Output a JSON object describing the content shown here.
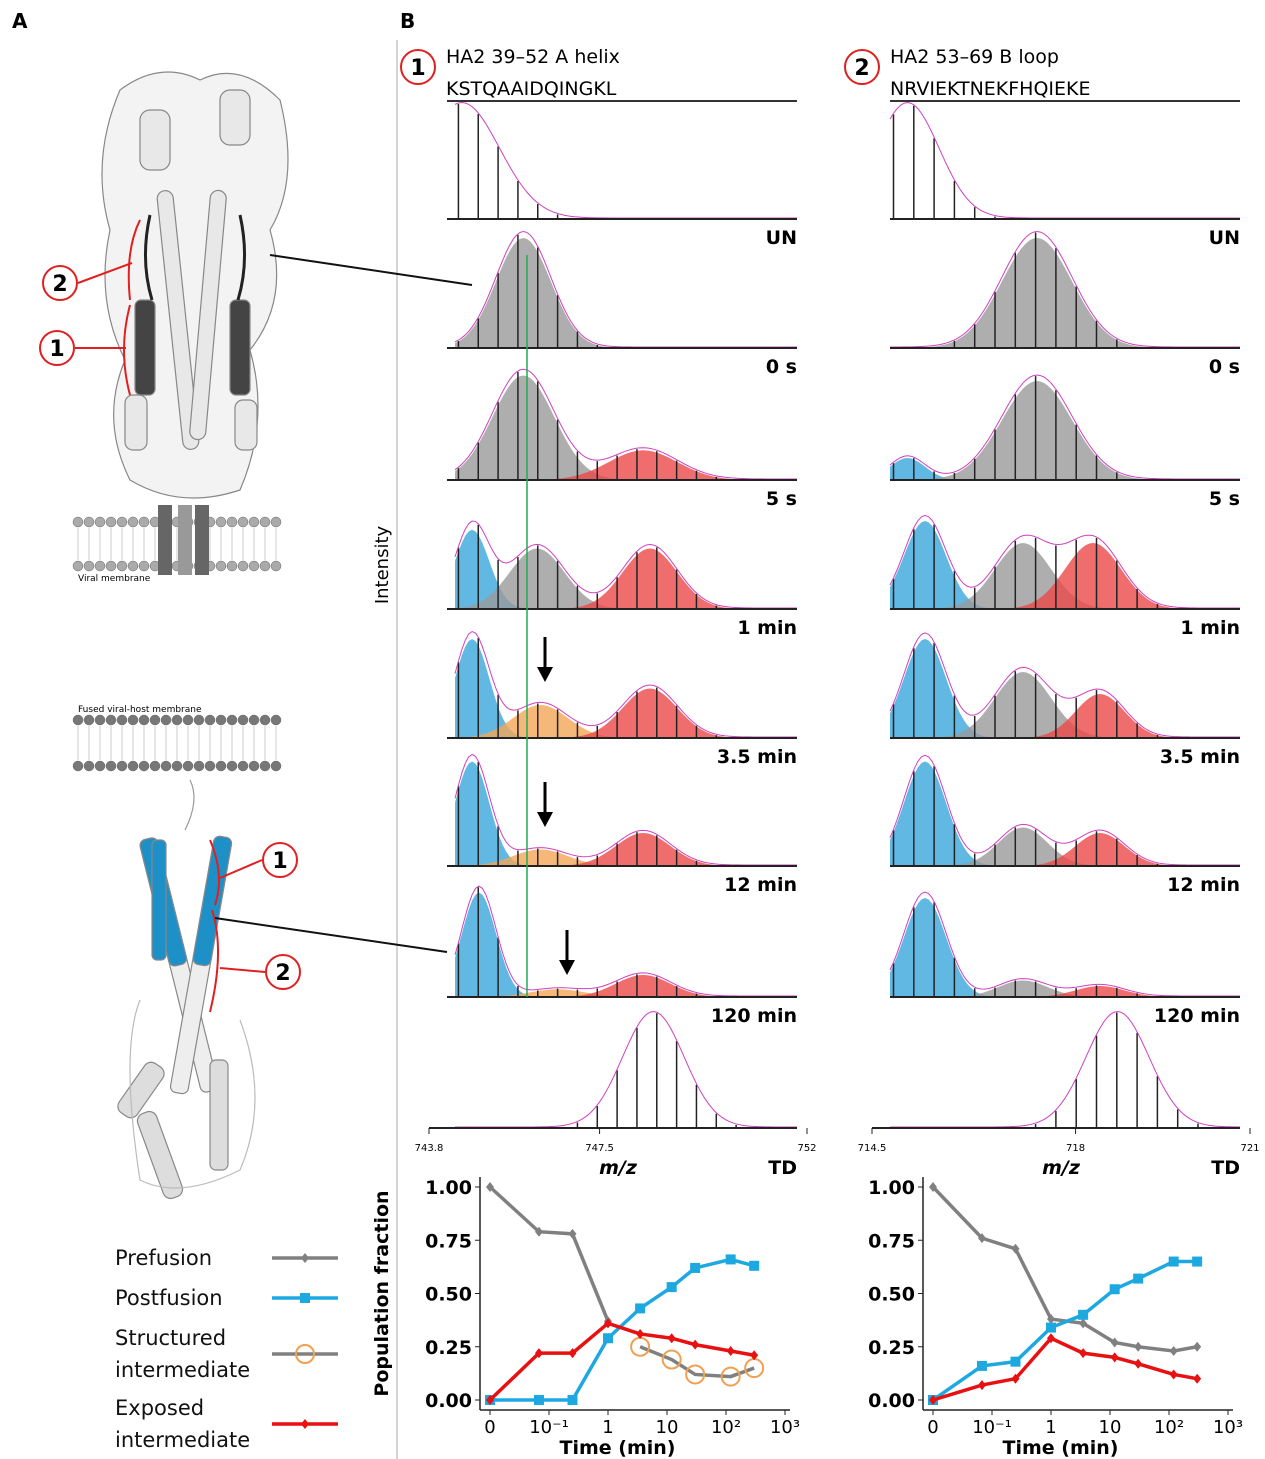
{
  "panel_labels": [
    "A",
    "B"
  ],
  "panel_a": {
    "callouts": [
      "2",
      "1",
      "1",
      "2"
    ],
    "membranes": [
      "Viral membrane",
      "Fused viral-host membrane"
    ]
  },
  "peptides": [
    {
      "number": "1",
      "name": "HA2 39–52 A helix",
      "sequence": "KSTQAAIDQINGKL",
      "xlabel": "m/z",
      "xlim": [
        743.8,
        752
      ],
      "xticks": [
        743.8,
        747.5,
        752
      ]
    },
    {
      "number": "2",
      "name": "HA2 53–69 B loop",
      "sequence": "NRVIEKTNEKFHQIEKE",
      "xlabel": "m/z",
      "xlim": [
        714.5,
        721
      ],
      "xticks": [
        714.5,
        718,
        721
      ]
    }
  ],
  "timepoints": [
    "UN",
    "0 s",
    "5 s",
    "1 min",
    "3.5 min",
    "12 min",
    "120 min",
    "TD"
  ],
  "y_label": "Intensity",
  "chart_data": [
    {
      "type": "line",
      "ylabel": "Population fraction",
      "xlabel": "Time (min)",
      "xscale": "symlog",
      "x": [
        0,
        0.083,
        0.25,
        1,
        3.5,
        12,
        30,
        120,
        300
      ],
      "xlim": [
        0,
        1000
      ],
      "xticks": [
        0,
        {
          "value": 0.1,
          "label": "10⁻¹"
        },
        1,
        10,
        {
          "value": 100,
          "label": "10²"
        },
        {
          "value": 1000,
          "label": "10³"
        }
      ],
      "ylim": [
        0,
        1
      ],
      "yticks": [
        {
          "value": 0,
          "label": "0.00"
        },
        {
          "value": 0.25,
          "label": "0.25"
        },
        {
          "value": 0.5,
          "label": "0.50"
        },
        {
          "value": 0.75,
          "label": "0.75"
        },
        {
          "value": 1,
          "label": "1.00"
        }
      ],
      "series": [
        {
          "name": "Prefusion",
          "color": "#808080",
          "marker": "diamond",
          "values": [
            1.0,
            0.79,
            0.78,
            0.37,
            null,
            null,
            null,
            null,
            null
          ]
        },
        {
          "name": "Postfusion",
          "color": "#1ea8e0",
          "marker": "square",
          "values": [
            0,
            0,
            0,
            0.29,
            0.43,
            0.53,
            0.62,
            0.66,
            0.63
          ]
        },
        {
          "name": "Structured intermediate",
          "color": "#808080",
          "marker": "circle",
          "marker_color": "#f0a050",
          "values": [
            null,
            null,
            null,
            null,
            0.25,
            0.19,
            0.12,
            0.11,
            0.15
          ]
        },
        {
          "name": "Exposed intermediate",
          "color": "#e81010",
          "marker": "diamond",
          "values": [
            0,
            0.22,
            0.22,
            0.36,
            0.31,
            0.29,
            0.26,
            0.23,
            0.21
          ]
        }
      ]
    },
    {
      "type": "line",
      "xlabel": "Time (min)",
      "xscale": "symlog",
      "x": [
        0,
        0.083,
        0.25,
        1,
        3.5,
        12,
        30,
        120,
        300
      ],
      "xlim": [
        0,
        1000
      ],
      "xticks": [
        0,
        {
          "value": 0.1,
          "label": "10⁻¹"
        },
        1,
        10,
        {
          "value": 100,
          "label": "10²"
        },
        {
          "value": 1000,
          "label": "10³"
        }
      ],
      "ylim": [
        0,
        1
      ],
      "yticks": [
        {
          "value": 0,
          "label": "0.00"
        },
        {
          "value": 0.25,
          "label": "0.25"
        },
        {
          "value": 0.5,
          "label": "0.50"
        },
        {
          "value": 0.75,
          "label": "0.75"
        },
        {
          "value": 1,
          "label": "1.00"
        }
      ],
      "series": [
        {
          "name": "Prefusion",
          "color": "#808080",
          "marker": "diamond",
          "values": [
            1.0,
            0.76,
            0.71,
            0.38,
            0.36,
            0.27,
            0.25,
            0.23,
            0.25
          ]
        },
        {
          "name": "Postfusion",
          "color": "#1ea8e0",
          "marker": "square",
          "values": [
            0,
            0.16,
            0.18,
            0.34,
            0.4,
            0.52,
            0.57,
            0.65,
            0.65
          ]
        },
        {
          "name": "Exposed intermediate",
          "color": "#e81010",
          "marker": "diamond",
          "values": [
            0,
            0.07,
            0.1,
            0.29,
            0.22,
            0.2,
            0.17,
            0.12,
            0.1
          ]
        }
      ]
    }
  ]
}
